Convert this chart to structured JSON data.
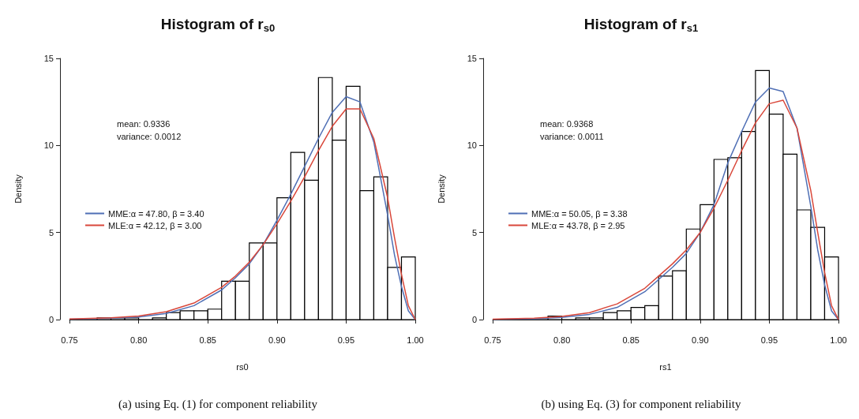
{
  "chart_data": [
    {
      "type": "histogram",
      "title": "Histogram of r$_{s0}$",
      "xlabel": "rs0",
      "ylabel": "Density",
      "bins": [
        0.75,
        0.76,
        0.77,
        0.78,
        0.79,
        0.8,
        0.81,
        0.82,
        0.83,
        0.84,
        0.85,
        0.86,
        0.87,
        0.88,
        0.89,
        0.9,
        0.91,
        0.92,
        0.93,
        0.94,
        0.95,
        0.96,
        0.97,
        0.98,
        0.99,
        1.0
      ],
      "values": [
        0,
        0,
        0.1,
        0.1,
        0.1,
        0,
        0.1,
        0.4,
        0.5,
        0.5,
        0.6,
        2.2,
        2.2,
        4.4,
        4.4,
        7.0,
        9.6,
        8.0,
        13.9,
        10.3,
        13.4,
        7.4,
        8.2,
        3.0,
        3.6
      ],
      "color": "#000000",
      "series": [
        {
          "type": "line",
          "name": "MME:α = 47.80, β = 3.40",
          "color": "#4f6fb5",
          "x": [
            0.75,
            0.78,
            0.8,
            0.82,
            0.84,
            0.86,
            0.87,
            0.88,
            0.89,
            0.9,
            0.91,
            0.92,
            0.93,
            0.94,
            0.95,
            0.96,
            0.97,
            0.98,
            0.985,
            0.99,
            0.995,
            1.0
          ],
          "values": [
            0.02,
            0.08,
            0.15,
            0.35,
            0.8,
            1.7,
            2.4,
            3.2,
            4.3,
            5.7,
            7.2,
            8.8,
            10.4,
            11.9,
            12.8,
            12.5,
            10.2,
            6.0,
            3.7,
            1.9,
            0.5,
            0
          ]
        },
        {
          "type": "line",
          "name": "MLE:α = 42.12, β = 3.00",
          "color": "#d9473a",
          "x": [
            0.75,
            0.78,
            0.8,
            0.82,
            0.84,
            0.86,
            0.87,
            0.88,
            0.89,
            0.9,
            0.91,
            0.92,
            0.93,
            0.94,
            0.95,
            0.96,
            0.97,
            0.98,
            0.985,
            0.99,
            0.995,
            1.0
          ],
          "values": [
            0.03,
            0.1,
            0.2,
            0.45,
            0.95,
            1.85,
            2.5,
            3.3,
            4.3,
            5.5,
            6.8,
            8.2,
            9.7,
            11.1,
            12.1,
            12.1,
            10.4,
            7.0,
            4.7,
            2.6,
            0.8,
            0
          ]
        }
      ],
      "xlim": [
        0.75,
        1.0
      ],
      "xticks": [
        0.75,
        {
          "value": 0.8,
          "label": "0.80"
        },
        0.85,
        {
          "value": 0.9,
          "label": "0.90"
        },
        0.95,
        {
          "value": 1.0,
          "label": "1.00"
        }
      ],
      "ylim": [
        0,
        15
      ],
      "yticks": [
        0,
        5,
        10,
        15
      ],
      "legend": "left",
      "annotations": [
        "mean: 0.9336",
        "variance: 0.0012",
        "(a) using Eq. (1) for component reliability"
      ]
    },
    {
      "type": "histogram",
      "title": "Histogram of r$_{s1}$",
      "xlabel": "rs1",
      "ylabel": "Density",
      "bins": [
        0.75,
        0.76,
        0.77,
        0.78,
        0.79,
        0.8,
        0.81,
        0.82,
        0.83,
        0.84,
        0.85,
        0.86,
        0.87,
        0.88,
        0.89,
        0.9,
        0.91,
        0.92,
        0.93,
        0.94,
        0.95,
        0.96,
        0.97,
        0.98,
        0.99,
        1.0
      ],
      "values": [
        0,
        0,
        0,
        0,
        0.2,
        0,
        0.1,
        0.1,
        0.4,
        0.5,
        0.7,
        0.8,
        2.5,
        2.8,
        5.2,
        6.6,
        9.2,
        9.3,
        10.8,
        14.3,
        11.8,
        9.5,
        6.3,
        5.3,
        3.6
      ],
      "color": "#000000",
      "series": [
        {
          "type": "line",
          "name": "MME:α = 50.05, β = 3.38",
          "color": "#4f6fb5",
          "x": [
            0.75,
            0.78,
            0.8,
            0.82,
            0.84,
            0.86,
            0.87,
            0.88,
            0.89,
            0.9,
            0.91,
            0.92,
            0.93,
            0.94,
            0.95,
            0.96,
            0.97,
            0.98,
            0.985,
            0.99,
            0.995,
            1.0
          ],
          "values": [
            0.01,
            0.05,
            0.12,
            0.3,
            0.7,
            1.6,
            2.3,
            3.0,
            3.8,
            5.0,
            6.6,
            9.0,
            10.8,
            12.5,
            13.3,
            13.1,
            11.0,
            6.5,
            4.0,
            2.0,
            0.5,
            0
          ]
        },
        {
          "type": "line",
          "name": "MLE:α = 43.78, β = 2.95",
          "color": "#d9473a",
          "x": [
            0.75,
            0.78,
            0.8,
            0.82,
            0.84,
            0.86,
            0.87,
            0.88,
            0.89,
            0.9,
            0.91,
            0.92,
            0.93,
            0.94,
            0.95,
            0.96,
            0.97,
            0.98,
            0.985,
            0.99,
            0.995,
            1.0
          ],
          "values": [
            0.02,
            0.08,
            0.18,
            0.4,
            0.9,
            1.8,
            2.5,
            3.2,
            4.0,
            5.0,
            6.4,
            8.0,
            9.7,
            11.3,
            12.4,
            12.6,
            11.0,
            7.4,
            5.0,
            2.7,
            0.8,
            0
          ]
        }
      ],
      "xlim": [
        0.75,
        1.0
      ],
      "xticks": [
        0.75,
        {
          "value": 0.8,
          "label": "0.80"
        },
        0.85,
        {
          "value": 0.9,
          "label": "0.90"
        },
        0.95,
        {
          "value": 1.0,
          "label": "1.00"
        }
      ],
      "ylim": [
        0,
        15
      ],
      "yticks": [
        0,
        5,
        10,
        15
      ],
      "legend": "left",
      "annotations": [
        "mean: 0.9368",
        "variance: 0.0011",
        "(b) using Eq. (3) for component reliability"
      ]
    }
  ]
}
